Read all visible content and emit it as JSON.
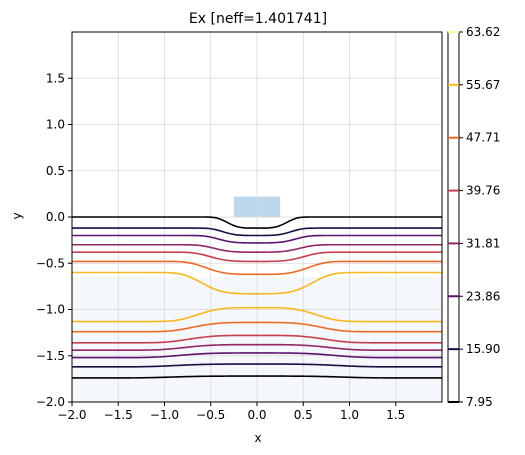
{
  "chart_data": {
    "type": "line",
    "title": "Ex [neff=1.401741]",
    "xlabel": "x",
    "ylabel": "y",
    "xlim": [
      -2.0,
      2.0
    ],
    "ylim": [
      -2.0,
      2.0
    ],
    "xticks": [
      "−2.0",
      "−1.5",
      "−1.0",
      "−0.5",
      "0.0",
      "0.5",
      "1.0",
      "1.5"
    ],
    "yticks": [
      "−2.0",
      "−1.5",
      "−1.0",
      "−0.5",
      "0.0",
      "0.5",
      "1.0",
      "1.5"
    ],
    "grid": true,
    "regions": [
      {
        "name": "core",
        "x": [
          -0.25,
          0.25
        ],
        "y": [
          0.0,
          0.22
        ],
        "color": "#bcd6ec"
      },
      {
        "name": "substrate",
        "x": [
          -2.0,
          2.0
        ],
        "y": [
          -2.0,
          -0.65
        ],
        "color": "#f4f7fb"
      }
    ],
    "colorbar": {
      "ticks": [
        "7.95",
        "15.90",
        "23.86",
        "31.81",
        "39.76",
        "47.71",
        "55.67",
        "63.62"
      ],
      "values": [
        7.95,
        15.9,
        23.86,
        31.81,
        39.76,
        47.71,
        55.67,
        63.62
      ],
      "colors": [
        "#000004",
        "#1b0c41",
        "#5c126e",
        "#932667",
        "#c73e4c",
        "#ed6925",
        "#fbb61a",
        "#fcffa4"
      ]
    },
    "contour_levels": [
      {
        "level": 7.95,
        "color": "#000004",
        "edge": 0.0,
        "center": -0.12,
        "half_width": 0.35
      },
      {
        "level": 15.9,
        "color": "#1b0c41",
        "edge": -0.12,
        "center": -0.2,
        "half_width": 0.4
      },
      {
        "level": 23.86,
        "color": "#5c126e",
        "edge": -0.2,
        "center": -0.28,
        "half_width": 0.45
      },
      {
        "level": 31.81,
        "color": "#932667",
        "edge": -0.3,
        "center": -0.38,
        "half_width": 0.5
      },
      {
        "level": 39.76,
        "color": "#c73e4c",
        "edge": -0.38,
        "center": -0.48,
        "half_width": 0.55
      },
      {
        "level": 47.71,
        "color": "#ed6925",
        "edge": -0.48,
        "center": -0.62,
        "half_width": 0.6
      },
      {
        "level": 55.67,
        "color": "#fbb61a",
        "edge": -0.6,
        "center": -0.83,
        "half_width": 0.65
      },
      {
        "level": 55.67,
        "color": "#fbb61a",
        "edge": -1.13,
        "center": -0.98,
        "half_width": 0.7
      },
      {
        "level": 47.71,
        "color": "#ed6925",
        "edge": -1.24,
        "center": -1.14,
        "half_width": 0.75
      },
      {
        "level": 39.76,
        "color": "#c73e4c",
        "edge": -1.36,
        "center": -1.28,
        "half_width": 0.8
      },
      {
        "level": 31.81,
        "color": "#932667",
        "edge": -1.44,
        "center": -1.38,
        "half_width": 0.85
      },
      {
        "level": 23.86,
        "color": "#5c126e",
        "edge": -1.52,
        "center": -1.47,
        "half_width": 0.9
      },
      {
        "level": 15.9,
        "color": "#1b0c41",
        "edge": -1.62,
        "center": -1.59,
        "half_width": 0.95
      },
      {
        "level": 7.95,
        "color": "#000004",
        "edge": -1.74,
        "center": -1.72,
        "half_width": 1.0
      }
    ]
  }
}
